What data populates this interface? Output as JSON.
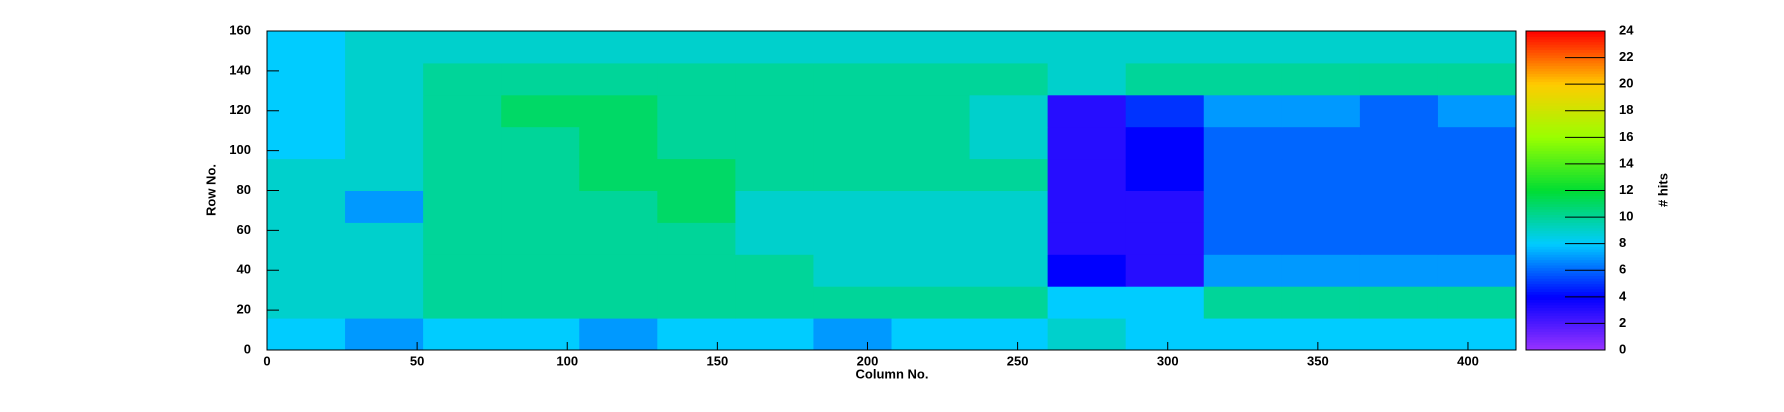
{
  "chart_data": {
    "type": "heatmap",
    "x_label": "Column No.",
    "y_label": "Row No.",
    "z_label": "# hits",
    "xbins": [
      0,
      26,
      52,
      78,
      104,
      130,
      156,
      182,
      208,
      234,
      260,
      286,
      312,
      338,
      364,
      390,
      416
    ],
    "ybins": [
      0,
      16,
      32,
      48,
      64,
      80,
      96,
      112,
      128,
      144,
      160
    ],
    "z": [
      [
        8,
        7,
        8,
        8,
        7,
        8,
        8,
        7,
        8,
        8,
        9,
        8,
        8,
        8,
        8,
        8
      ],
      [
        9,
        9,
        10,
        10,
        10,
        10,
        10,
        10,
        10,
        10,
        8,
        8,
        10,
        10,
        10,
        10
      ],
      [
        9,
        9,
        10,
        10,
        10,
        10,
        10,
        9,
        9,
        9,
        4,
        3,
        7,
        7,
        7,
        7
      ],
      [
        9,
        9,
        10,
        10,
        10,
        10,
        9,
        9,
        9,
        9,
        3,
        3,
        6,
        6,
        6,
        6
      ],
      [
        9,
        7,
        10,
        10,
        10,
        11,
        9,
        9,
        9,
        9,
        3,
        3,
        6,
        6,
        6,
        6
      ],
      [
        9,
        9,
        10,
        10,
        11,
        11,
        10,
        10,
        10,
        10,
        3,
        4,
        6,
        6,
        6,
        6
      ],
      [
        8,
        9,
        10,
        10,
        11,
        10,
        10,
        10,
        10,
        9,
        3,
        4,
        6,
        6,
        6,
        6
      ],
      [
        8,
        9,
        10,
        11,
        11,
        10,
        10,
        10,
        10,
        9,
        3,
        5,
        7,
        7,
        6,
        7
      ],
      [
        8,
        9,
        10,
        10,
        10,
        10,
        10,
        10,
        10,
        10,
        9,
        10,
        10,
        10,
        10,
        10
      ],
      [
        8,
        9,
        9,
        9,
        9,
        9,
        9,
        9,
        9,
        9,
        9,
        9,
        9,
        9,
        9,
        9
      ]
    ],
    "xlim": [
      0,
      416
    ],
    "xticks": [
      0,
      50,
      100,
      150,
      200,
      250,
      300,
      350,
      400
    ],
    "ylim": [
      0,
      160
    ],
    "yticks": [
      0,
      20,
      40,
      60,
      80,
      100,
      120,
      140,
      160
    ],
    "zlim": [
      0,
      24
    ],
    "zticks": [
      0,
      2,
      4,
      6,
      8,
      10,
      12,
      14,
      16,
      18,
      20,
      22,
      24
    ],
    "colormap": [
      "#9933ff",
      "#0000ff",
      "#00ccff",
      "#00dd33",
      "#99ff00",
      "#ffcc00",
      "#ff0000"
    ]
  }
}
